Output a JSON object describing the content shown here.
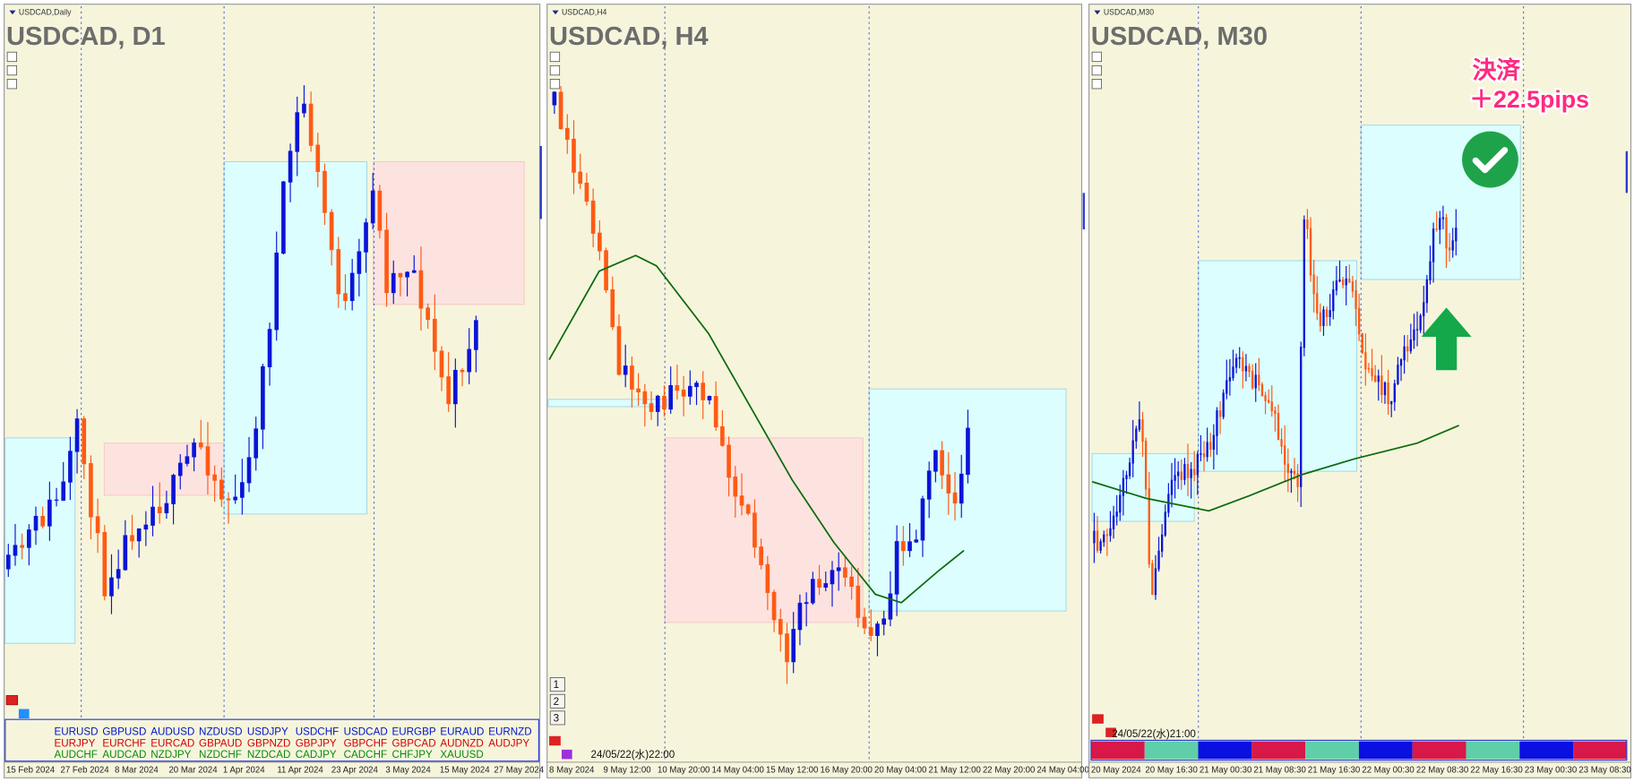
{
  "panels": [
    {
      "window_label": "USDCAD,Daily",
      "title": "USDCAD, D1",
      "dates": [
        "15 Feb 2024",
        "27 Feb 2024",
        "8 Mar 2024",
        "20 Mar 2024",
        "1 Apr 2024",
        "11 Apr 2024",
        "23 Apr 2024",
        "3 May 2024",
        "15 May 2024",
        "27 May 2024"
      ]
    },
    {
      "window_label": "USDCAD,H4",
      "title": "USDCAD, H4",
      "dates": [
        "8 May 2024",
        "9 May 12:00",
        "10 May 20:00",
        "14 May 04:00",
        "15 May 12:00",
        "16 May 20:00",
        "20 May 04:00",
        "21 May 12:00",
        "22 May 20:00",
        "24 May 04:00"
      ],
      "timestamp": "24/05/22(水)22:00",
      "buttons": [
        "1",
        "2",
        "3"
      ]
    },
    {
      "window_label": "USDCAD,M30",
      "title": "USDCAD, M30",
      "dates": [
        "20 May 2024",
        "20 May 16:30",
        "21 May 00:30",
        "21 May 08:30",
        "21 May 16:30",
        "22 May 00:30",
        "22 May 08:30",
        "22 May 16:30",
        "23 May 00:30",
        "23 May 08:30"
      ],
      "timestamp": "24/05/22(水)21:00",
      "annotation": [
        "決済",
        "＋22.5pips"
      ]
    }
  ],
  "pairs": [
    [
      "EURUSD",
      "GBPUSD",
      "AUDUSD",
      "NZDUSD",
      "USDJPY",
      "USDCHF",
      "USDCAD",
      "EURGBP",
      "EURAUD",
      "EURNZD"
    ],
    [
      "EURJPY",
      "EURCHF",
      "EURCAD",
      "GBPAUD",
      "GBPNZD",
      "GBPJPY",
      "GBPCHF",
      "GBPCAD",
      "AUDNZD",
      "AUDJPY"
    ],
    [
      "AUDCHF",
      "AUDCAD",
      "NZDJPY",
      "NZDCHF",
      "NZDCAD",
      "CADJPY",
      "CADCHF",
      "CHFJPY",
      "XAUUSD"
    ]
  ]
}
